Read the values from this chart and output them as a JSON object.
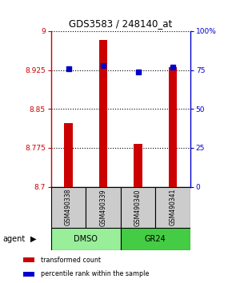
{
  "title": "GDS3583 / 248140_at",
  "categories": [
    "GSM490338",
    "GSM490339",
    "GSM490340",
    "GSM490341"
  ],
  "bar_values": [
    8.822,
    8.983,
    8.782,
    8.93
  ],
  "bar_bottom": 8.7,
  "percentile_values": [
    76.0,
    78.0,
    74.0,
    77.0
  ],
  "ylim_left": [
    8.7,
    9.0
  ],
  "ylim_right": [
    0,
    100
  ],
  "yticks_left": [
    8.7,
    8.775,
    8.85,
    8.925,
    9.0
  ],
  "yticks_left_labels": [
    "8.7",
    "8.775",
    "8.85",
    "8.925",
    "9"
  ],
  "yticks_right": [
    0,
    25,
    50,
    75,
    100
  ],
  "yticks_right_labels": [
    "0",
    "25",
    "50",
    "75",
    "100%"
  ],
  "bar_color": "#cc0000",
  "percentile_color": "#0000cc",
  "groups": [
    {
      "label": "DMSO",
      "indices": [
        0,
        1
      ],
      "color": "#99ee99"
    },
    {
      "label": "GR24",
      "indices": [
        2,
        3
      ],
      "color": "#44cc44"
    }
  ],
  "group_label": "agent",
  "legend_items": [
    {
      "label": "transformed count",
      "color": "#cc0000"
    },
    {
      "label": "percentile rank within the sample",
      "color": "#0000cc"
    }
  ],
  "background_color": "#ffffff",
  "sample_box_color": "#cccccc",
  "bar_width": 0.25
}
